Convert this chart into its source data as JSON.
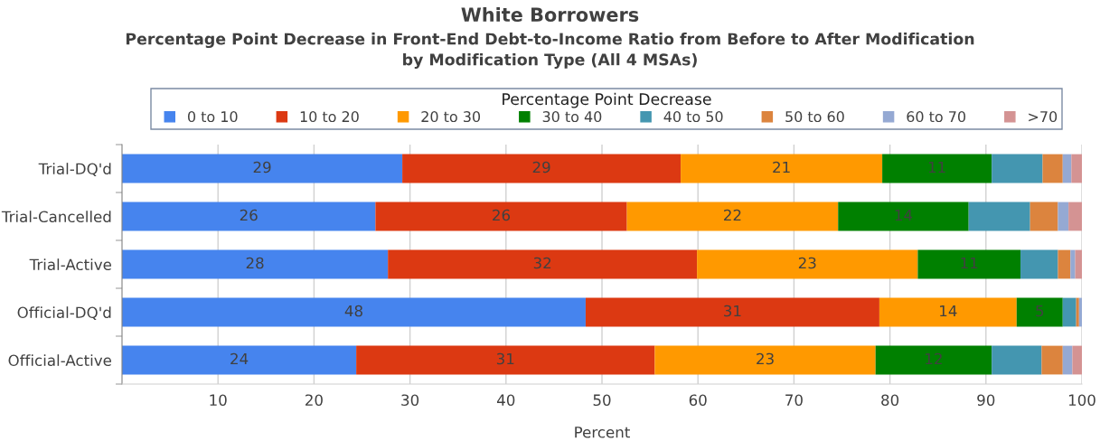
{
  "chart_data": {
    "type": "bar",
    "orientation": "horizontal",
    "stacked": true,
    "title": "White Borrowers",
    "subtitle": "Percentage Point Decrease in Front-End Debt-to-Income Ratio from Before to After Modification\nby Modification Type (All 4 MSAs)",
    "xlabel": "Percent",
    "legend_title": "Percentage Point Decrease",
    "categories": [
      "Trial-DQ'd",
      "Trial-Cancelled",
      "Trial-Active",
      "Official-DQ'd",
      "Official-Active"
    ],
    "series": [
      {
        "name": "0 to 10",
        "color": "#4684ee",
        "values": [
          29.2,
          26.4,
          27.7,
          48.3,
          24.4
        ],
        "value_labels": [
          "29",
          "26",
          "28",
          "48",
          "24"
        ]
      },
      {
        "name": "10 to 20",
        "color": "#dc3912",
        "values": [
          29.0,
          26.2,
          32.2,
          30.6,
          31.1
        ],
        "value_labels": [
          "29",
          "26",
          "32",
          "31",
          "31"
        ]
      },
      {
        "name": "20 to 30",
        "color": "#ff9900",
        "values": [
          21.0,
          22.0,
          23.0,
          14.3,
          23.0
        ],
        "value_labels": [
          "21",
          "22",
          "23",
          "14",
          "23"
        ]
      },
      {
        "name": "30 to 40",
        "color": "#008000",
        "values": [
          11.4,
          13.6,
          10.7,
          4.8,
          12.1
        ],
        "value_labels": [
          "11",
          "14",
          "11",
          "5",
          "12"
        ]
      },
      {
        "name": "40 to 50",
        "color": "#4496b0",
        "values": [
          5.3,
          6.4,
          3.9,
          1.4,
          5.2
        ]
      },
      {
        "name": "50 to 60",
        "color": "#dc843e",
        "values": [
          2.1,
          2.9,
          1.3,
          0.3,
          2.2
        ]
      },
      {
        "name": "60 to 70",
        "color": "#95a9d3",
        "values": [
          0.9,
          1.1,
          0.5,
          0.3,
          1.0
        ]
      },
      {
        "name": ">70",
        "color": "#d49393",
        "values": [
          1.1,
          1.4,
          0.7,
          null,
          1.0
        ]
      }
    ],
    "xlim": [
      0,
      100
    ],
    "xticks": [
      10,
      20,
      30,
      40,
      50,
      60,
      70,
      80,
      90,
      100
    ],
    "grid": "x",
    "legend": "top"
  }
}
